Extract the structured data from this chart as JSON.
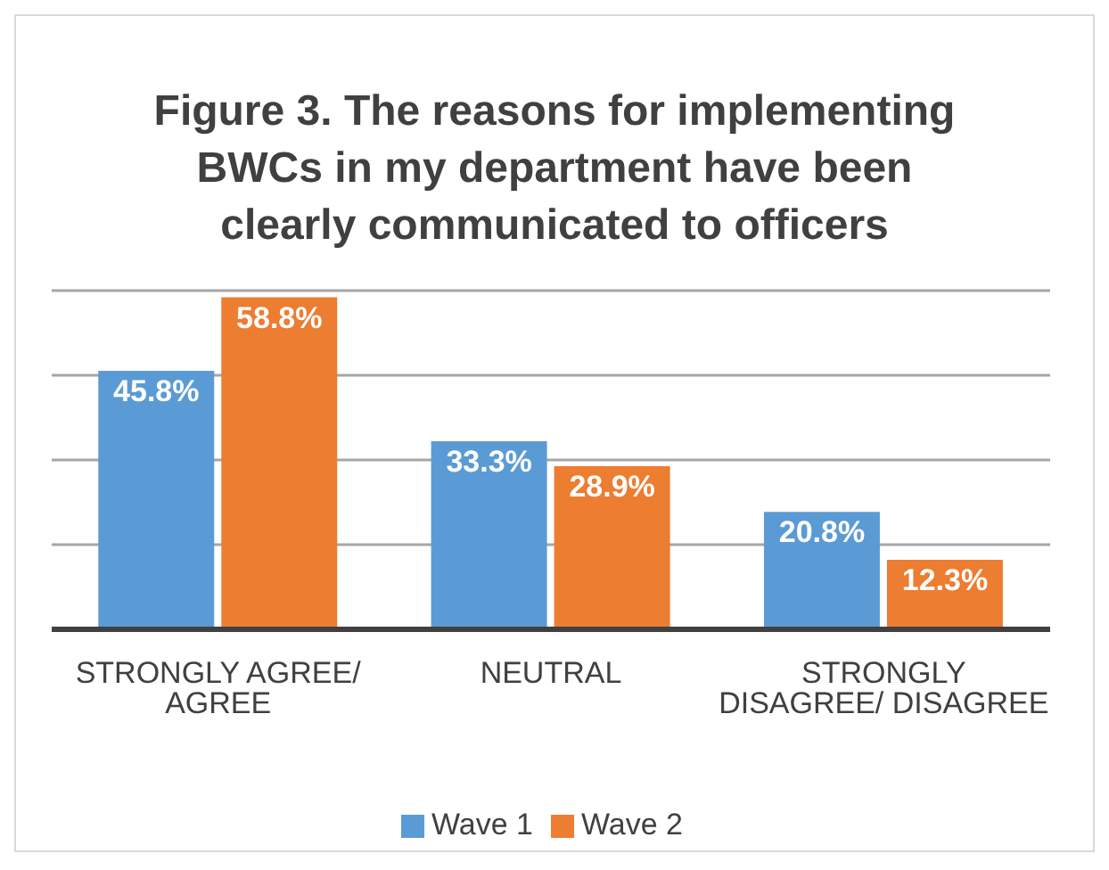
{
  "chart_data": {
    "type": "bar",
    "title": "Figure 3. The reasons for implementing BWCs in my department have been clearly communicated to officers",
    "categories": [
      "STRONGLY AGREE/ AGREE",
      "NEUTRAL",
      "STRONGLY DISAGREE/ DISAGREE"
    ],
    "series": [
      {
        "name": "Wave 1",
        "color": "#5b9bd5",
        "values": [
          45.8,
          33.3,
          20.8
        ],
        "value_labels": [
          "45.8%",
          "33.3%",
          "20.8%"
        ]
      },
      {
        "name": "Wave 2",
        "color": "#ed7d31",
        "values": [
          58.8,
          28.9,
          12.3
        ],
        "value_labels": [
          "58.8%",
          "28.9%",
          "12.3%"
        ]
      }
    ],
    "tick_labels": "x",
    "grid": "y",
    "legend": "bottom"
  }
}
